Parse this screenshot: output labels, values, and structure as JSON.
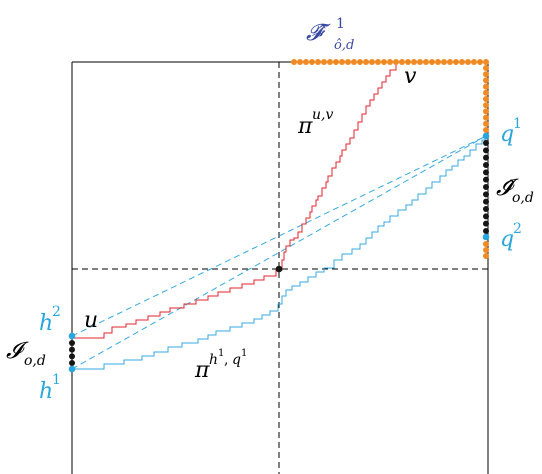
{
  "diagram": {
    "colors": {
      "frame": "#000000",
      "dashed": "#000000",
      "red_path": "#e0262b",
      "blue_path": "#34a9e0",
      "orange_dot": "#f08a24",
      "black_dot": "#151515",
      "blue_dot": "#2aa6de",
      "label_black": "#000000",
      "label_blue": "#2aa6de",
      "label_indigo": "#3949a3"
    },
    "labels": {
      "F_hat": {
        "main": "𝓕̂",
        "sub": "ô,d",
        "sup": "1"
      },
      "I_hat": {
        "main": "𝓘̂",
        "sub": "o,d"
      },
      "I": {
        "main": "𝓘",
        "sub": "o,d"
      },
      "q1": {
        "main": "q",
        "sup": "1"
      },
      "q2": {
        "main": "q",
        "sup": "2"
      },
      "h1": {
        "main": "h",
        "sup": "1"
      },
      "h2": {
        "main": "h",
        "sup": "2"
      },
      "u": "u",
      "v": "v",
      "pi_uv": {
        "main": "π",
        "sup": "u,v"
      },
      "pi_hq": {
        "main": "π",
        "sup_base1": "h",
        "sup_sup1": "1",
        "sup_sep": ",",
        "sup_base2": "q",
        "sup_sup2": "1"
      }
    }
  }
}
